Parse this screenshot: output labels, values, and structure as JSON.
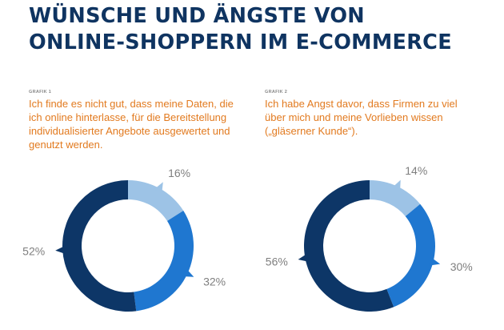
{
  "header": {
    "title_line1": "WÜNSCHE UND ÄNGSTE VON",
    "title_line2": "ONLINE-SHOPPERN IM E-COMMERCE"
  },
  "colors": {
    "dark": "#0d3667",
    "mid": "#1f77d0",
    "light": "#9dc3e6",
    "title": "#0f3461",
    "accent": "#e27a1f"
  },
  "chart_data": [
    {
      "type": "pie",
      "kicker": "GRAFIK 1",
      "title": "Ich finde es nicht gut, dass meine Daten, die ich online hinterlasse, für die Bereitstellung individualisierter Angebote ausgewertet und genutzt werden.",
      "slices": [
        {
          "value": 16,
          "label": "16%",
          "color": "#9dc3e6"
        },
        {
          "value": 32,
          "label": "32%",
          "color": "#1f77d0"
        },
        {
          "value": 52,
          "label": "52%",
          "color": "#0d3667"
        }
      ]
    },
    {
      "type": "pie",
      "kicker": "GRAFIK 2",
      "title": "Ich habe Angst davor, dass Firmen zu viel über mich und meine Vorlieben wissen („gläserner Kunde“).",
      "slices": [
        {
          "value": 14,
          "label": "14%",
          "color": "#9dc3e6"
        },
        {
          "value": 30,
          "label": "30%",
          "color": "#1f77d0"
        },
        {
          "value": 56,
          "label": "56%",
          "color": "#0d3667"
        }
      ]
    }
  ]
}
